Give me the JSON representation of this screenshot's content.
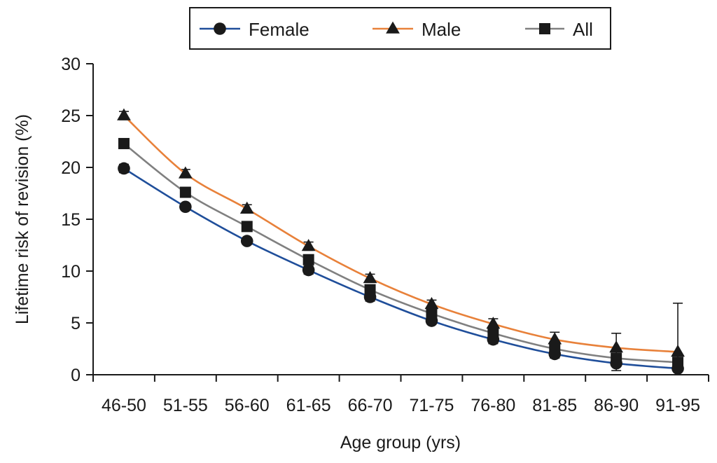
{
  "chart_data": {
    "type": "line",
    "categories": [
      "46-50",
      "51-55",
      "56-60",
      "61-65",
      "66-70",
      "71-75",
      "76-80",
      "81-85",
      "86-90",
      "91-95"
    ],
    "series": [
      {
        "name": "Female",
        "color": "#1f4e9a",
        "marker": "circle",
        "values": [
          19.9,
          16.2,
          12.9,
          10.1,
          7.5,
          5.2,
          3.4,
          2.0,
          1.1,
          0.6
        ],
        "error_low": [
          19.5,
          15.9,
          12.6,
          9.7,
          7.1,
          4.9,
          3.0,
          1.6,
          0.4,
          0.3
        ],
        "error_high": [
          20.3,
          16.5,
          13.2,
          10.5,
          7.9,
          5.5,
          3.8,
          2.4,
          1.8,
          0.9
        ]
      },
      {
        "name": "Male",
        "color": "#e8813a",
        "marker": "triangle",
        "values": [
          25.0,
          19.4,
          16.0,
          12.4,
          9.3,
          6.8,
          4.9,
          3.4,
          2.6,
          2.2
        ],
        "error_low": [
          24.6,
          19.0,
          15.6,
          12.0,
          8.9,
          6.4,
          4.4,
          2.7,
          1.4,
          0.5
        ],
        "error_high": [
          25.4,
          19.8,
          16.4,
          12.8,
          9.7,
          7.2,
          5.4,
          4.1,
          4.0,
          6.9
        ]
      },
      {
        "name": "All",
        "color": "#808080",
        "marker": "square",
        "values": [
          22.3,
          17.6,
          14.3,
          11.1,
          8.2,
          5.9,
          4.0,
          2.5,
          1.6,
          1.2
        ],
        "error_low": [
          22.3,
          17.6,
          14.3,
          11.1,
          8.2,
          5.9,
          4.0,
          2.5,
          1.6,
          1.2
        ],
        "error_high": [
          22.3,
          17.6,
          14.3,
          11.1,
          8.2,
          5.9,
          4.0,
          2.5,
          1.6,
          1.2
        ]
      }
    ],
    "xlabel": "Age group (yrs)",
    "ylabel": "Lifetime risk of revision (%)",
    "ylim": [
      0,
      30
    ],
    "yticks": [
      0,
      5,
      10,
      15,
      20,
      25,
      30
    ],
    "grid": false,
    "legend_position": "top-center"
  }
}
